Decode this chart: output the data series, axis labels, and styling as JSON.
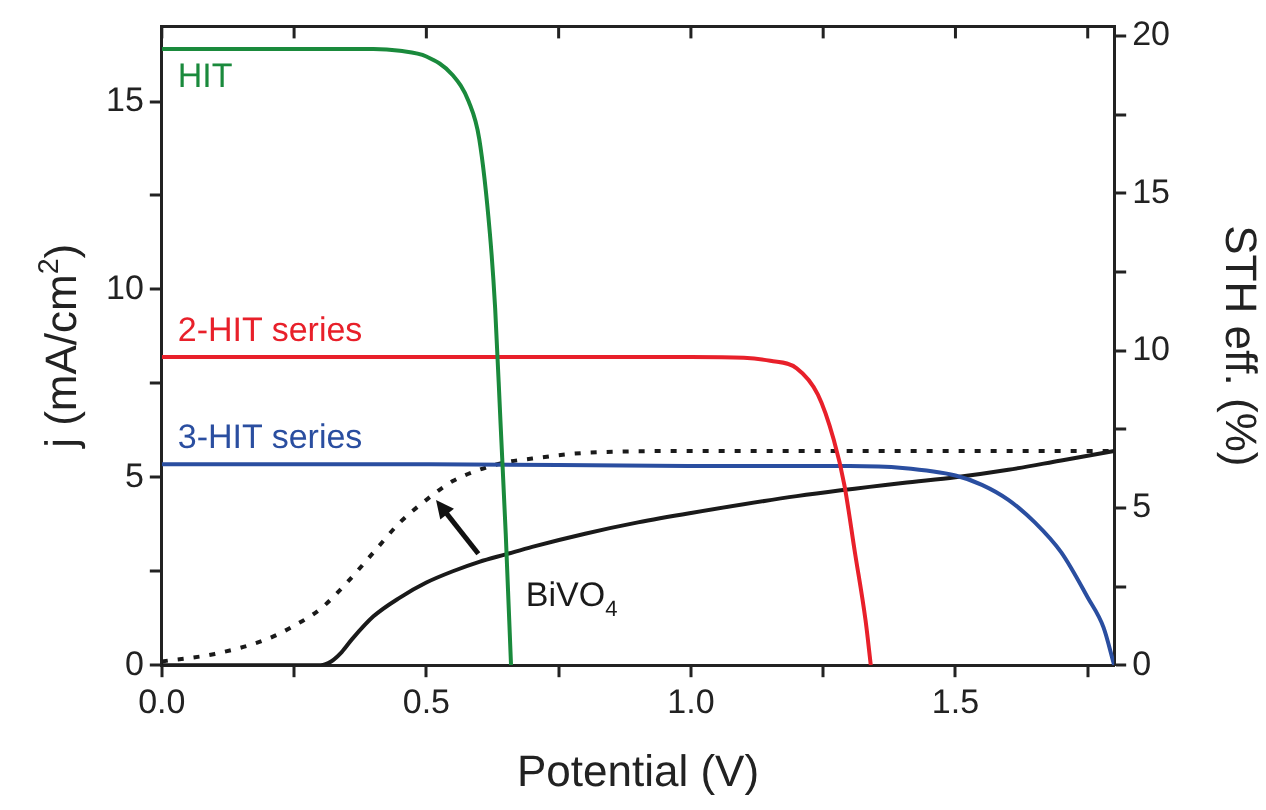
{
  "chart_data": {
    "type": "line",
    "xlabel": "Potential (V)",
    "ylabel": "j (mA/cm$^{2}$)",
    "y2label": "STH eff. (%)",
    "xlim": [
      0,
      1.8
    ],
    "xticks": [
      {
        "value": 0,
        "label": "0.0"
      },
      {
        "value": 0.25,
        "label": null
      },
      {
        "value": 0.5,
        "label": "0.5"
      },
      {
        "value": 0.75,
        "label": null
      },
      {
        "value": 1,
        "label": "1.0"
      },
      {
        "value": 1.25,
        "label": null
      },
      {
        "value": 1.5,
        "label": "1.5"
      },
      {
        "value": 1.75,
        "label": null
      }
    ],
    "ylim": [
      0,
      17
    ],
    "yticks": [
      0,
      {
        "value": 2.5,
        "label": null
      },
      5,
      {
        "value": 7.5,
        "label": null
      },
      10,
      {
        "value": 12.5,
        "label": null
      },
      15
    ],
    "y2lim": [
      0,
      20.3
    ],
    "y2ticks": [
      0,
      {
        "value": 2.5,
        "label": null
      },
      5,
      {
        "value": 7.5,
        "label": null
      },
      10,
      {
        "value": 12.5,
        "label": null
      },
      15,
      {
        "value": 17.5,
        "label": null
      },
      20
    ],
    "grid": false,
    "legend": false,
    "marker": "none",
    "series": [
      {
        "name": "HIT",
        "color": "#1a8a3c",
        "x": [
          0,
          0.2,
          0.4,
          0.45,
          0.5,
          0.55,
          0.58,
          0.6,
          0.62,
          0.63,
          0.64,
          0.65,
          0.66
        ],
        "values": [
          16.4,
          16.4,
          16.4,
          16.35,
          16.2,
          15.7,
          15.0,
          14.0,
          11.5,
          9.5,
          6.5,
          3.5,
          0
        ]
      },
      {
        "name": "2-HIT series",
        "color": "#e8202a",
        "x": [
          0,
          0.5,
          1.0,
          1.1,
          1.15,
          1.2,
          1.24,
          1.27,
          1.29,
          1.31,
          1.33,
          1.34
        ],
        "values": [
          8.2,
          8.2,
          8.2,
          8.18,
          8.1,
          7.9,
          7.2,
          6.0,
          4.8,
          3.0,
          1.2,
          0
        ]
      },
      {
        "name": "3-HIT series",
        "color": "#2a4ea0",
        "x": [
          0,
          0.5,
          1.0,
          1.3,
          1.4,
          1.5,
          1.55,
          1.6,
          1.65,
          1.7,
          1.75,
          1.78,
          1.8
        ],
        "values": [
          5.35,
          5.35,
          5.3,
          5.3,
          5.25,
          5.05,
          4.8,
          4.4,
          3.8,
          3.0,
          1.8,
          1.0,
          0
        ]
      },
      {
        "name": "BiVO$_{4}$",
        "color": "#1a1a1a",
        "x": [
          0,
          0.3,
          0.32,
          0.34,
          0.36,
          0.4,
          0.45,
          0.5,
          0.55,
          0.6,
          0.65,
          0.7,
          0.8,
          0.9,
          1.0,
          1.2,
          1.4,
          1.5,
          1.6,
          1.7,
          1.8
        ],
        "values": [
          0,
          0,
          0.1,
          0.35,
          0.7,
          1.3,
          1.8,
          2.2,
          2.5,
          2.75,
          2.95,
          3.15,
          3.5,
          3.8,
          4.05,
          4.5,
          4.85,
          5.0,
          5.2,
          5.45,
          5.7
        ]
      },
      {
        "color": "#1a1a1a",
        "line_style": "dotted",
        "x": [
          0,
          0.1,
          0.2,
          0.25,
          0.3,
          0.35,
          0.4,
          0.45,
          0.5,
          0.55,
          0.6,
          0.65,
          0.7,
          0.8,
          1.0,
          1.2,
          1.5,
          1.8
        ],
        "values": [
          0.1,
          0.3,
          0.7,
          1.05,
          1.5,
          2.2,
          3.0,
          3.8,
          4.4,
          4.9,
          5.2,
          5.4,
          5.5,
          5.65,
          5.7,
          5.7,
          5.7,
          5.7
        ]
      }
    ]
  }
}
